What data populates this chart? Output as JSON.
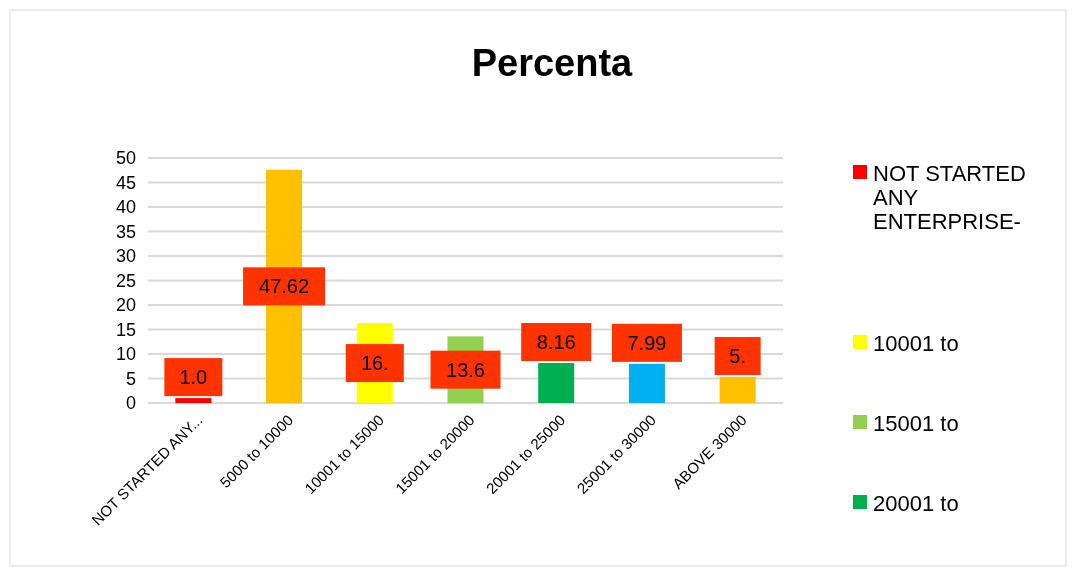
{
  "chart_data": {
    "type": "bar",
    "title": "Percenta",
    "categories": [
      "NOT STARTED ANY...",
      "5000 to 10000",
      "10001 to 15000",
      "15001 to 20000",
      "20001 to 25000",
      "25001 to 30000",
      "ABOVE 30000"
    ],
    "series": [
      {
        "name": "NOT STARTED ANY ENTERPRISE-",
        "color": "#ff0000",
        "values": [
          1.0,
          null,
          null,
          null,
          null,
          null,
          null
        ],
        "value_labels": [
          "1.0",
          null,
          null,
          null,
          null,
          null,
          null
        ]
      },
      {
        "color": "#ffc000",
        "values": [
          null,
          47.62,
          null,
          null,
          null,
          null,
          null
        ],
        "value_labels": [
          null,
          "47.62",
          null,
          null,
          null,
          null,
          null
        ]
      },
      {
        "name": "10001 to",
        "color": "#ffff00",
        "values": [
          null,
          null,
          16.3,
          null,
          null,
          null,
          null
        ],
        "value_labels": [
          null,
          null,
          "16.",
          null,
          null,
          null,
          null
        ]
      },
      {
        "name": "15001 to",
        "color": "#92d050",
        "values": [
          null,
          null,
          null,
          13.6,
          null,
          null,
          null
        ],
        "value_labels": [
          null,
          null,
          null,
          "13.6",
          null,
          null,
          null
        ]
      },
      {
        "name": "20001 to",
        "color": "#00b050",
        "values": [
          null,
          null,
          null,
          null,
          8.16,
          null,
          null
        ],
        "value_labels": [
          null,
          null,
          null,
          null,
          "8.16",
          null,
          null
        ]
      },
      {
        "color": "#00b0f0",
        "values": [
          null,
          null,
          null,
          null,
          null,
          7.99,
          null
        ],
        "value_labels": [
          null,
          null,
          null,
          null,
          null,
          "7.99",
          null
        ]
      },
      {
        "color": "#ffc000",
        "values": [
          null,
          null,
          null,
          null,
          null,
          null,
          5.3
        ],
        "value_labels": [
          null,
          null,
          null,
          null,
          null,
          null,
          "5."
        ]
      }
    ],
    "ylim": [
      0,
      50
    ],
    "yticks": [
      0,
      5,
      10,
      15,
      20,
      25,
      30,
      35,
      40,
      45,
      50
    ],
    "grid": "y",
    "legend": "right"
  }
}
